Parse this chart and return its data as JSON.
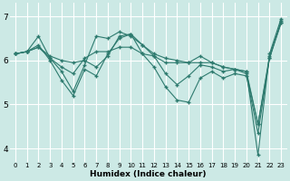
{
  "xlabel": "Humidex (Indice chaleur)",
  "bg_color": "#cce9e5",
  "grid_color": "#ffffff",
  "line_color": "#2d7a6e",
  "xlim": [
    -0.5,
    23.5
  ],
  "ylim": [
    3.7,
    7.3
  ],
  "yticks": [
    4,
    5,
    6,
    7
  ],
  "series": [
    [
      6.15,
      6.2,
      6.55,
      6.05,
      5.75,
      5.3,
      5.9,
      6.55,
      6.5,
      6.65,
      6.55,
      6.35,
      6.1,
      5.7,
      5.45,
      5.65,
      5.9,
      5.85,
      5.75,
      5.8,
      5.75,
      3.85,
      6.15,
      6.95
    ],
    [
      6.15,
      6.2,
      6.3,
      6.05,
      5.85,
      5.7,
      6.05,
      6.2,
      6.2,
      6.3,
      6.3,
      6.15,
      6.1,
      5.95,
      5.95,
      5.95,
      6.1,
      5.95,
      5.85,
      5.8,
      5.7,
      4.55,
      6.05,
      6.85
    ],
    [
      6.15,
      6.2,
      6.35,
      6.0,
      5.55,
      5.2,
      5.8,
      5.65,
      6.15,
      6.5,
      6.6,
      6.15,
      5.85,
      5.4,
      5.1,
      5.05,
      5.6,
      5.75,
      5.6,
      5.7,
      5.65,
      4.35,
      6.05,
      6.9
    ],
    [
      6.15,
      6.2,
      6.3,
      6.1,
      6.0,
      5.95,
      6.0,
      5.85,
      6.1,
      6.55,
      6.6,
      6.35,
      6.15,
      6.05,
      6.0,
      5.95,
      5.95,
      5.95,
      5.85,
      5.8,
      5.75,
      4.55,
      6.1,
      6.85
    ]
  ]
}
